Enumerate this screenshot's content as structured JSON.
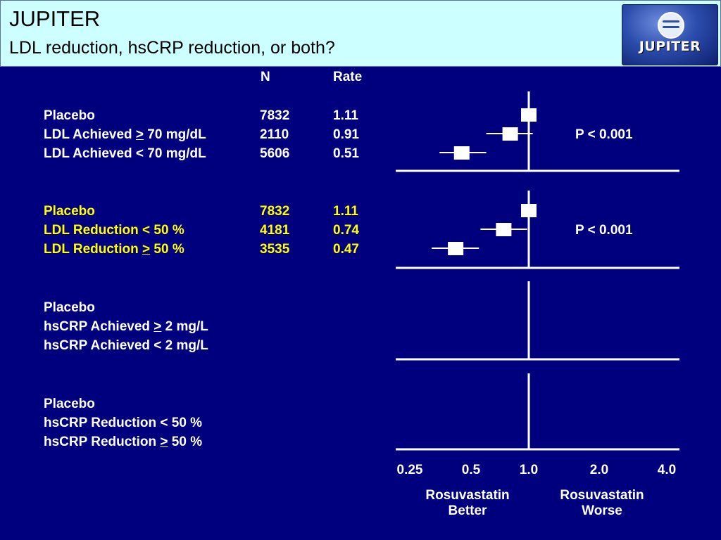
{
  "header": {
    "title": "JUPITER",
    "subtitle": "LDL reduction, hsCRP reduction, or both?",
    "logo_text": "JUPITER"
  },
  "columns": {
    "n": "N",
    "rate": "Rate"
  },
  "groups": [
    {
      "highlight": false,
      "p_value": "P < 0.001",
      "rows": [
        {
          "label_pre": "Placebo",
          "label_sym": "",
          "label_post": "",
          "n": "7832",
          "rate": "1.11"
        },
        {
          "label_pre": "LDL Achieved ",
          "label_sym": ">",
          "label_post": " 70 mg/dL",
          "n": "2110",
          "rate": "0.91"
        },
        {
          "label_pre": "LDL Achieved < 70 mg/dL",
          "label_sym": "",
          "label_post": "",
          "n": "5606",
          "rate": "0.51"
        }
      ]
    },
    {
      "highlight": true,
      "p_value": "P < 0.001",
      "rows": [
        {
          "label_pre": "Placebo",
          "label_sym": "",
          "label_post": "",
          "n": "7832",
          "rate": "1.11"
        },
        {
          "label_pre": "LDL Reduction < 50 %",
          "label_sym": "",
          "label_post": "",
          "n": "4181",
          "rate": "0.74"
        },
        {
          "label_pre": "LDL Reduction ",
          "label_sym": ">",
          "label_post": " 50 %",
          "n": "3535",
          "rate": "0.47"
        }
      ]
    },
    {
      "highlight": false,
      "p_value": "",
      "rows": [
        {
          "label_pre": "Placebo",
          "label_sym": "",
          "label_post": "",
          "n": "",
          "rate": ""
        },
        {
          "label_pre": "hsCRP Achieved ",
          "label_sym": ">",
          "label_post": " 2 mg/L",
          "n": "",
          "rate": ""
        },
        {
          "label_pre": "hsCRP Achieved < 2 mg/L",
          "label_sym": "",
          "label_post": "",
          "n": "",
          "rate": ""
        }
      ]
    },
    {
      "highlight": false,
      "p_value": "",
      "rows": [
        {
          "label_pre": "Placebo",
          "label_sym": "",
          "label_post": "",
          "n": "",
          "rate": ""
        },
        {
          "label_pre": "hsCRP Reduction < 50 %",
          "label_sym": "",
          "label_post": "",
          "n": "",
          "rate": ""
        },
        {
          "label_pre": "hsCRP Reduction ",
          "label_sym": ">",
          "label_post": " 50 %",
          "n": "",
          "rate": ""
        }
      ]
    }
  ],
  "axis": {
    "left_caption_line1": "Rosuvastatin",
    "left_caption_line2": "Better",
    "right_caption_line1": "Rosuvastatin",
    "right_caption_line2": "Worse"
  },
  "colors": {
    "background": "#00007f",
    "header": "#ccffff",
    "highlight": "#ffff00",
    "text": "#ffffff"
  },
  "chart_data": {
    "type": "forest",
    "x_scale": "log2",
    "reference_line": 1.0,
    "xlim": [
      0.25,
      4.0
    ],
    "x_ticks": [
      0.25,
      0.5,
      1.0,
      2.0,
      4.0
    ],
    "x_tick_labels": [
      "0.25",
      "0.5",
      "1.0",
      "2.0",
      "4.0"
    ],
    "panels": [
      {
        "points": [
          {
            "hr": 1.0,
            "ci": null
          },
          {
            "hr": 0.8,
            "ci": [
              0.6,
              1.04
            ]
          },
          {
            "hr": 0.45,
            "ci": [
              0.35,
              0.6
            ]
          }
        ]
      },
      {
        "points": [
          {
            "hr": 1.0,
            "ci": null
          },
          {
            "hr": 0.74,
            "ci": [
              0.56,
              0.98
            ]
          },
          {
            "hr": 0.42,
            "ci": [
              0.32,
              0.55
            ]
          }
        ]
      },
      {
        "points": []
      },
      {
        "points": []
      }
    ]
  }
}
